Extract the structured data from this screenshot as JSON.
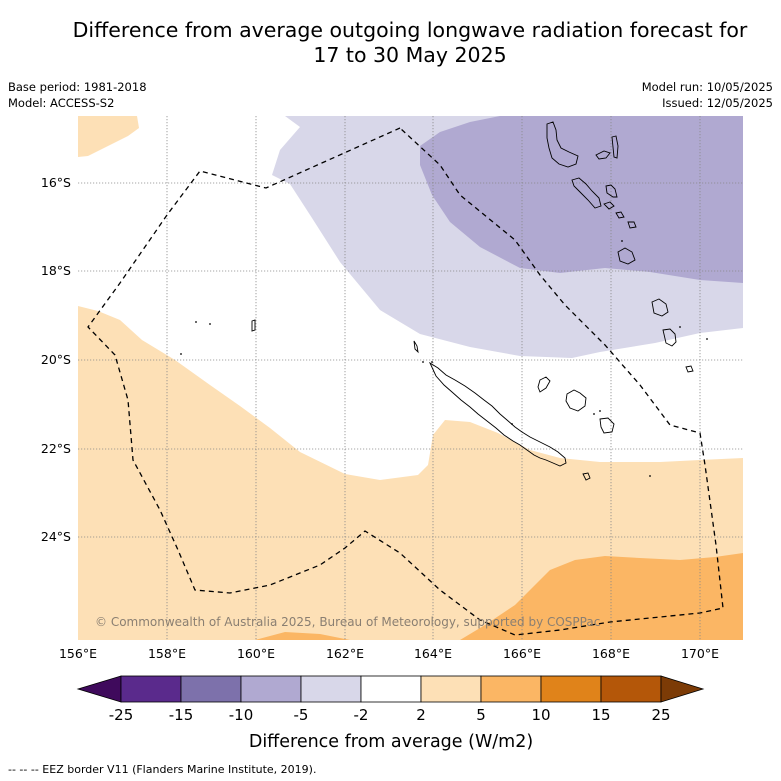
{
  "header": {
    "title_line1": "Difference from average outgoing longwave radiation forecast for",
    "title_line2": "17 to 30 May 2025",
    "base_period": "Base period: 1981-2018",
    "model": "Model: ACCESS-S2",
    "model_run": "Model run: 10/05/2025",
    "issued": "Issued: 12/05/2025"
  },
  "map": {
    "lat_labels": [
      "16°S",
      "18°S",
      "20°S",
      "22°S",
      "24°S"
    ],
    "lon_labels": [
      "156°E",
      "158°E",
      "160°E",
      "162°E",
      "164°E",
      "166°E",
      "168°E",
      "170°E"
    ],
    "copyright": "© Commonwealth of Australia 2025, Bureau of Meteorology, supported by COSPPac",
    "colors": {
      "land_outline": "#000000",
      "eez_border": "#000000",
      "gridline": "#888888"
    }
  },
  "colorbar": {
    "ticks": [
      "-25",
      "-15",
      "-10",
      "-5",
      "-2",
      "2",
      "5",
      "10",
      "15",
      "25"
    ],
    "colors": [
      "#3f0a5c",
      "#5a2a8c",
      "#7d71ab",
      "#b0a9d1",
      "#d8d7e9",
      "#ffffff",
      "#fde0b6",
      "#fbb664",
      "#e0831a",
      "#b45709",
      "#7c3b06"
    ],
    "title": "Difference from average (W/m2)"
  },
  "footnote": "-- -- -- EEZ border V11 (Flanders Marine Institute, 2019)."
}
